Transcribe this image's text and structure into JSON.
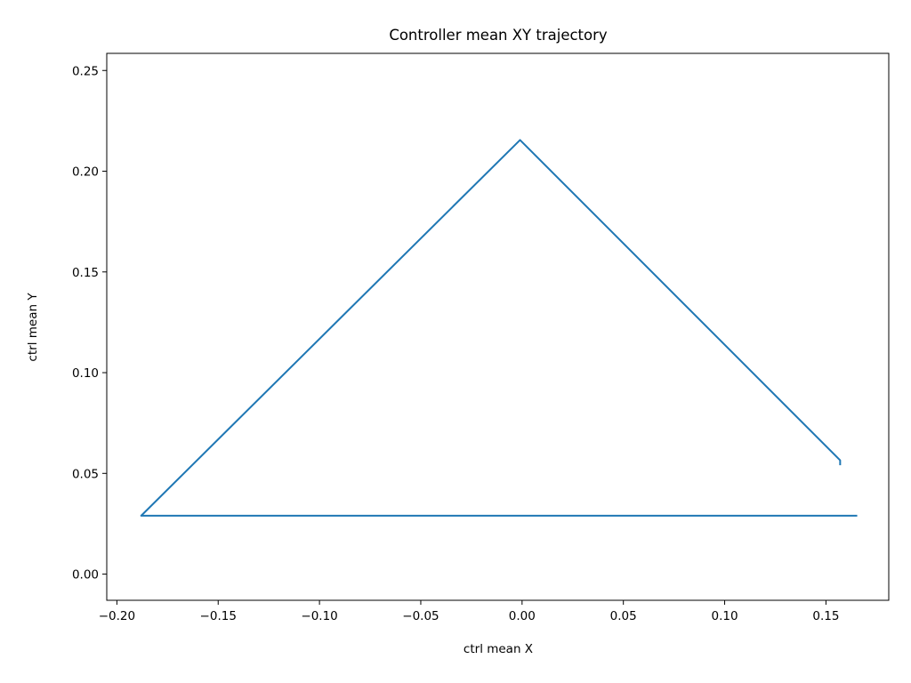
{
  "chart_data": {
    "type": "line",
    "title": "Controller mean XY trajectory",
    "xlabel": "ctrl mean X",
    "ylabel": "ctrl mean Y",
    "xlim": [
      -0.205,
      0.181
    ],
    "ylim": [
      -0.013,
      0.2585
    ],
    "xticks": [
      -0.2,
      -0.15,
      -0.1,
      -0.05,
      0.0,
      0.05,
      0.1,
      0.15
    ],
    "xtick_labels": [
      "−0.20",
      "−0.15",
      "−0.10",
      "−0.05",
      "0.00",
      "0.05",
      "0.10",
      "0.15"
    ],
    "yticks": [
      0.0,
      0.05,
      0.1,
      0.15,
      0.2,
      0.25
    ],
    "ytick_labels": [
      "0.00",
      "0.05",
      "0.10",
      "0.15",
      "0.20",
      "0.25"
    ],
    "grid": false,
    "series": [
      {
        "color": "#1f77b4",
        "x": [
          0.157,
          0.157,
          -0.001,
          -0.188,
          0.165
        ],
        "y": [
          0.0545,
          0.0565,
          0.2155,
          0.029,
          0.029
        ]
      }
    ]
  }
}
